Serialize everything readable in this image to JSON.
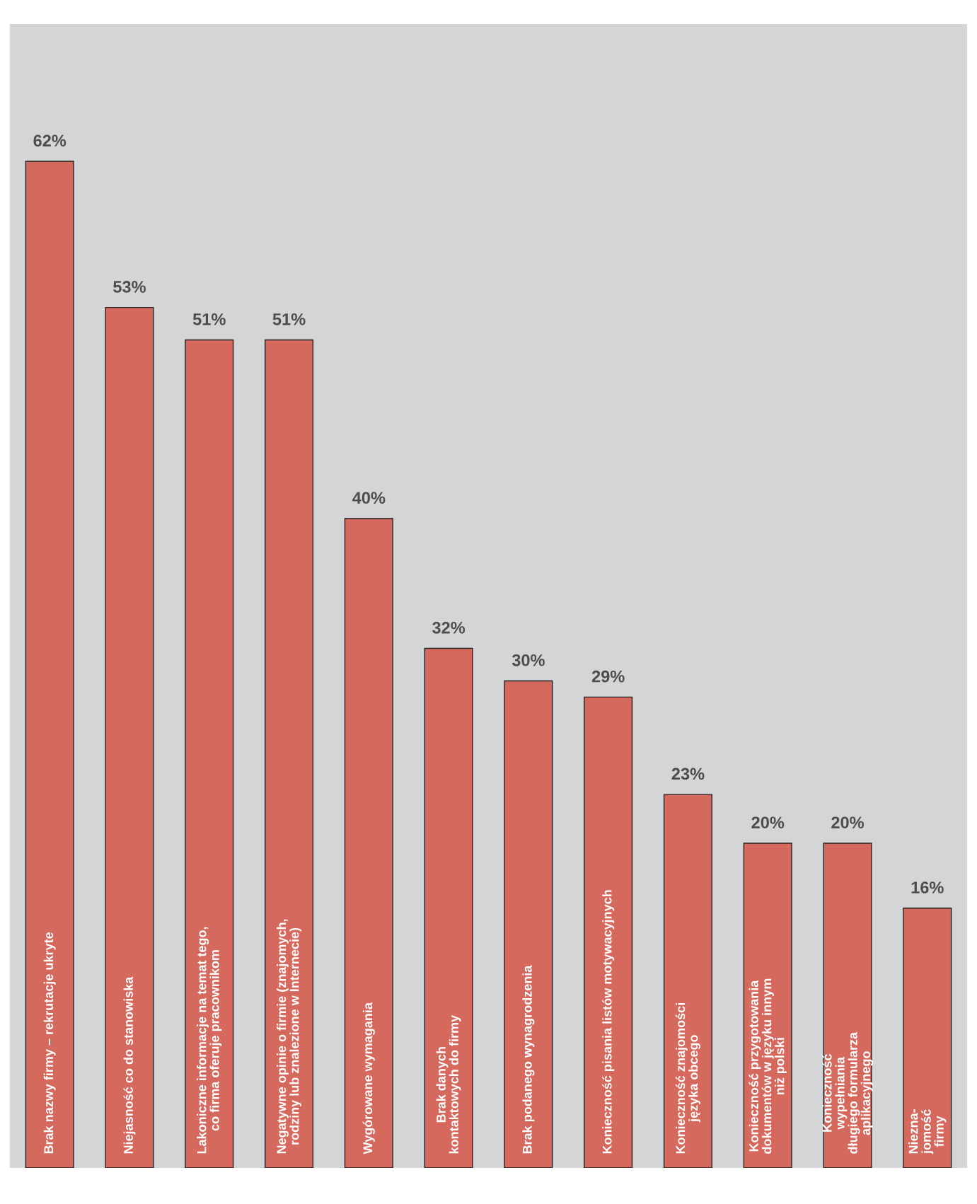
{
  "chart_data": {
    "type": "bar",
    "categories": [
      "Brak nazwy firmy – rekrutacje ukryte",
      "Niejasność co do stanowiska",
      "Lakoniczne informacje na temat tego,\nco firma oferuje pracownikom",
      "Negatywne opinie o firmie (znajomych,\nrodziny lub znalezione w Internecie)",
      "Wygórowane wymagania",
      "Brak danych\nkontaktowych do firmy",
      "Brak podanego wynagrodzenia",
      "Konieczność pisania listów motywacyjnych",
      "Konieczność znajomości\njęzyka obcego",
      "Konieczność przygotowania\ndokumentów w języku innym\nniż polski",
      "Konieczność\nwypełniania\ndługiego formularza\naplikacyjnego",
      "Niezna-\njomość\nfirmy"
    ],
    "values": [
      62,
      53,
      51,
      51,
      40,
      32,
      30,
      29,
      23,
      20,
      20,
      16
    ],
    "value_labels": [
      "62%",
      "53%",
      "51%",
      "51%",
      "40%",
      "32%",
      "30%",
      "29%",
      "23%",
      "20%",
      "20%",
      "16%"
    ],
    "color": "#d6695e",
    "relative": false,
    "tick_labels": false
  }
}
